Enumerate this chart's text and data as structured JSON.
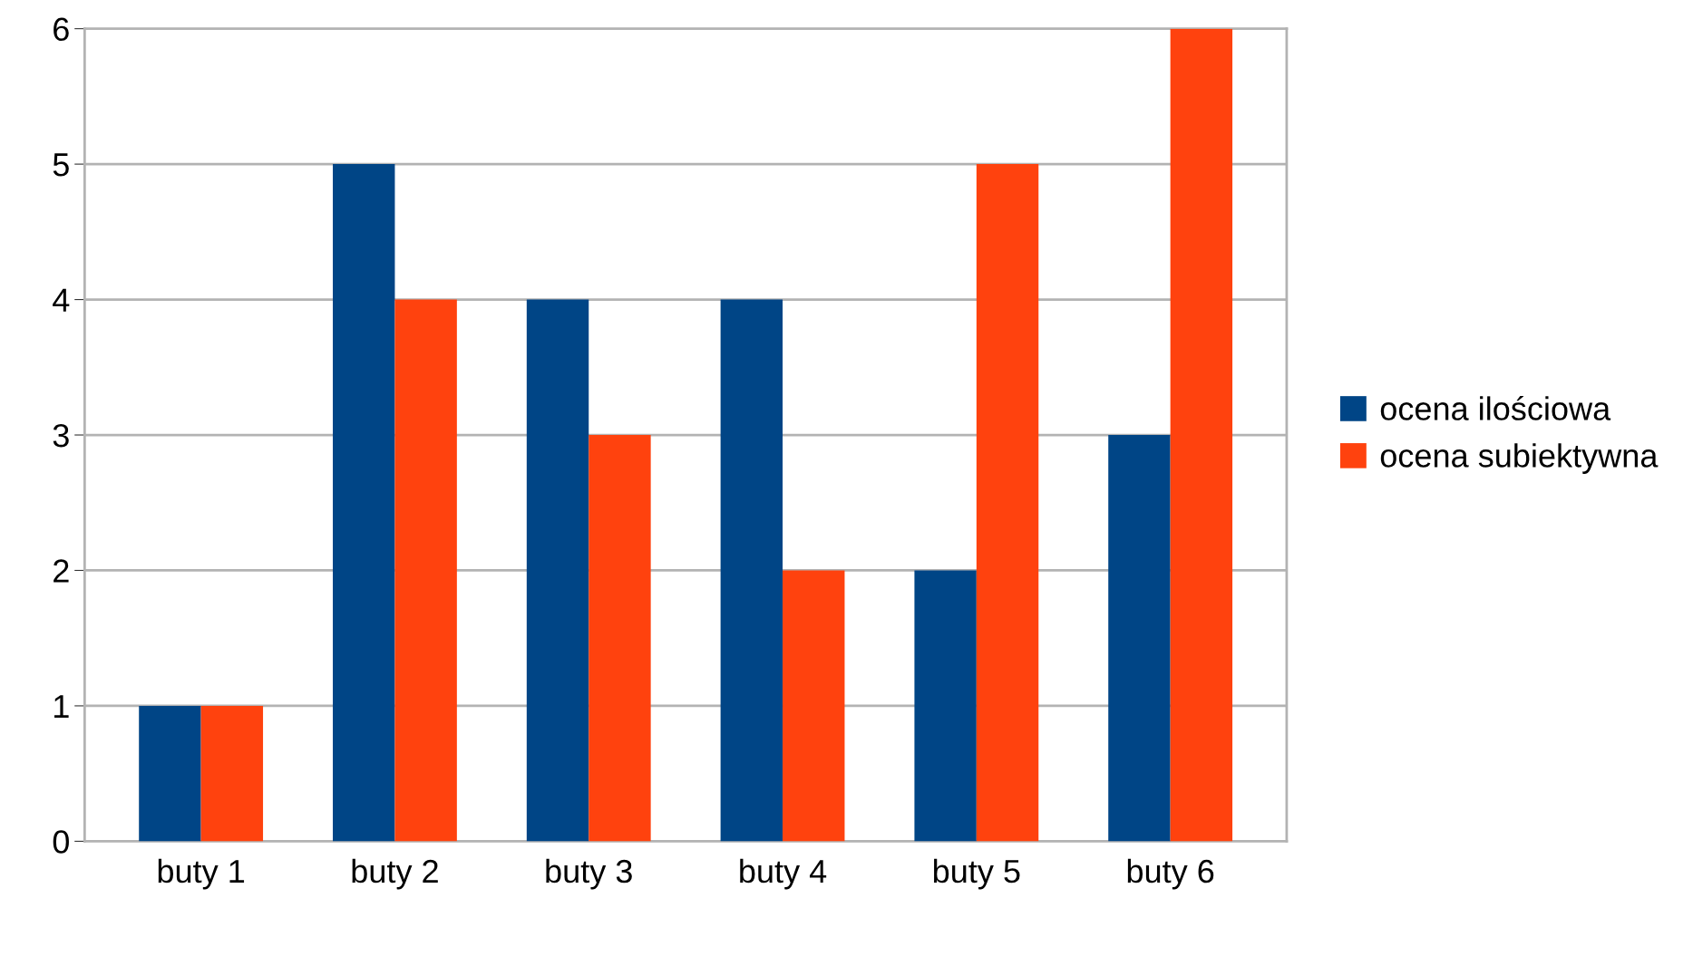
{
  "chart_data": {
    "type": "bar",
    "categories": [
      "buty 1",
      "buty 2",
      "buty 3",
      "buty 4",
      "buty 5",
      "buty 6"
    ],
    "series": [
      {
        "name": "ocena ilościowa",
        "color": "#004586",
        "values": [
          1,
          5,
          4,
          4,
          2,
          3
        ]
      },
      {
        "name": "ocena subiektywna",
        "color": "#ff420e",
        "values": [
          1,
          4,
          3,
          2,
          5,
          6
        ]
      }
    ],
    "ylim": [
      0,
      6
    ],
    "yticks": [
      0,
      1,
      2,
      3,
      4,
      5,
      6
    ],
    "grid": "y",
    "legend": "right"
  }
}
